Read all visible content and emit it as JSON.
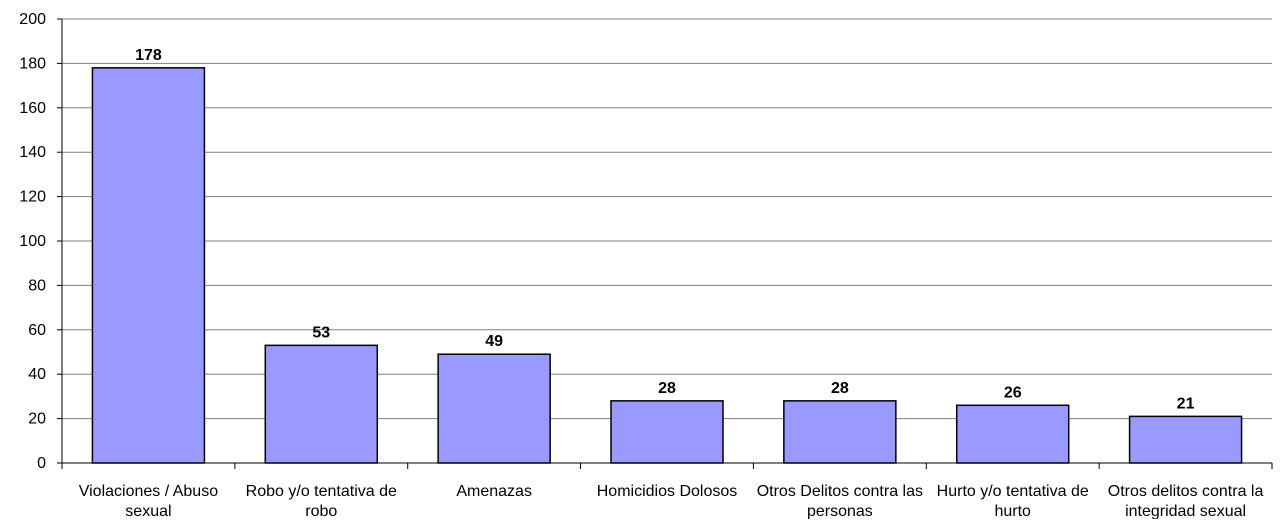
{
  "chart_data": {
    "type": "bar",
    "title": "",
    "xlabel": "",
    "ylabel": "",
    "ylim": [
      0,
      200
    ],
    "y_ticks": [
      "0",
      "20",
      "40",
      "60",
      "80",
      "100",
      "120",
      "140",
      "160",
      "180",
      "200"
    ],
    "grid": true,
    "legend": "none",
    "colors": {
      "bar_fill": "#9999ff",
      "bar_stroke": "#000000",
      "grid": "#808080",
      "axis": "#000000"
    },
    "categories": [
      [
        "Violaciones / Abuso",
        "sexual"
      ],
      [
        "Robo y/o tentativa de",
        "robo"
      ],
      [
        "Amenazas"
      ],
      [
        "Homicidios Dolosos"
      ],
      [
        "Otros Delitos contra las",
        "personas"
      ],
      [
        "Hurto y/o tentativa de",
        "hurto"
      ],
      [
        "Otros delitos contra la",
        "integridad sexual"
      ]
    ],
    "values": [
      178,
      53,
      49,
      28,
      28,
      26,
      21
    ],
    "data_labels": [
      "178",
      "53",
      "49",
      "28",
      "28",
      "26",
      "21"
    ]
  }
}
